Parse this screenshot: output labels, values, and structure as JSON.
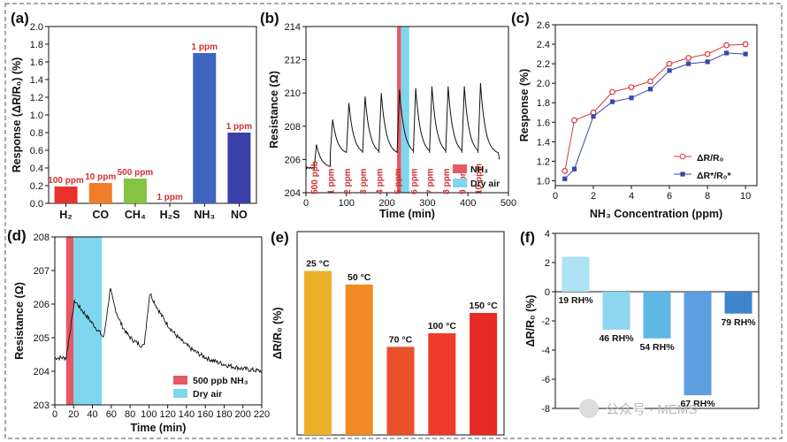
{
  "watermark": "公众号 · MEMS",
  "chart_data": [
    {
      "panel": "(a)",
      "type": "bar",
      "ylabel": "Response (ΔR/R₀) (%)",
      "ylim": [
        0,
        2.0
      ],
      "yticks": [
        "0.0",
        "0.2",
        "0.4",
        "0.6",
        "0.8",
        "1.0",
        "1.2",
        "1.4",
        "1.6",
        "1.8",
        "2.0"
      ],
      "categories": [
        "H₂",
        "CO",
        "CH₄",
        "H₂S",
        "NH₃",
        "NO"
      ],
      "values": [
        0.19,
        0.23,
        0.28,
        0.0,
        1.7,
        0.8
      ],
      "bar_labels": [
        "100 ppm",
        "10 ppm",
        "500 ppm",
        "1 ppm",
        "1 ppm",
        "1 ppm"
      ],
      "colors": [
        "#e8322c",
        "#f07d2a",
        "#86c443",
        "#e8b32c",
        "#3f65c1",
        "#3a3fa9"
      ]
    },
    {
      "panel": "(b)",
      "type": "line",
      "xlabel": "Time (min)",
      "ylabel": "Resistance (Ω)",
      "xlim": [
        0,
        500
      ],
      "ylim": [
        204,
        214
      ],
      "xticks": [
        "0",
        "100",
        "200",
        "300",
        "400",
        "500"
      ],
      "yticks": [
        "204",
        "206",
        "208",
        "210",
        "212",
        "214"
      ],
      "pulse_starts": [
        20,
        60,
        100,
        140,
        180,
        225,
        265,
        305,
        345,
        385,
        425
      ],
      "pulse_peaks": [
        206.9,
        208.4,
        209.4,
        209.8,
        210.0,
        210.2,
        210.3,
        210.4,
        210.4,
        210.4,
        210.6
      ],
      "pulse_labels": [
        "500 ppb",
        "1 ppm",
        "2 ppm",
        "3 ppm",
        "4 ppm",
        "5 ppm",
        "6 ppm",
        "7 ppm",
        "8 ppm",
        "9 ppm",
        "10 ppm"
      ],
      "nh3_band": [
        225,
        235
      ],
      "air_band": [
        235,
        255
      ],
      "legend": [
        "NH₃",
        "Dry air"
      ]
    },
    {
      "panel": "(c)",
      "type": "line",
      "xlabel": "NH₃ Concentration (ppm)",
      "ylabel": "Response (%)",
      "xlim": [
        0,
        10.6
      ],
      "ylim": [
        0.95,
        2.6
      ],
      "xticks": [
        "0",
        "2",
        "4",
        "6",
        "8",
        "10"
      ],
      "yticks": [
        "1.0",
        "1.2",
        "1.4",
        "1.6",
        "1.8",
        "2.0",
        "2.2",
        "2.4",
        "2.6"
      ],
      "x": [
        0.5,
        1,
        2,
        3,
        4,
        5,
        6,
        7,
        8,
        9,
        10
      ],
      "series": [
        {
          "name": "ΔR/R₀",
          "values": [
            1.1,
            1.62,
            1.7,
            1.91,
            1.96,
            2.02,
            2.2,
            2.26,
            2.3,
            2.39,
            2.4
          ],
          "color": "#d9373a"
        },
        {
          "name": "ΔR*/R₀*",
          "values": [
            1.02,
            1.12,
            1.66,
            1.81,
            1.85,
            1.94,
            2.13,
            2.2,
            2.22,
            2.31,
            2.3
          ],
          "color": "#3848a8"
        }
      ]
    },
    {
      "panel": "(d)",
      "type": "line",
      "xlabel": "Time (min)",
      "ylabel": "Resistance (Ω)",
      "xlim": [
        0,
        220
      ],
      "ylim": [
        203,
        208
      ],
      "xticks": [
        "0",
        "20",
        "40",
        "60",
        "80",
        "100",
        "120",
        "140",
        "160",
        "180",
        "200",
        "220"
      ],
      "yticks": [
        "203",
        "204",
        "205",
        "206",
        "207",
        "208"
      ],
      "nh3_band": [
        12,
        20
      ],
      "air_band": [
        20,
        50
      ],
      "legend": [
        "500 ppb NH₃",
        "Dry air"
      ]
    },
    {
      "panel": "(e)",
      "type": "bar",
      "ylabel": "ΔR/R₀ (%)",
      "ylim": [
        0,
        3.0
      ],
      "categories": [
        "25 °C",
        "50 °C",
        "70 °C",
        "100 °C",
        "150 °C"
      ],
      "values": [
        2.42,
        2.22,
        1.3,
        1.5,
        1.8
      ],
      "colors": [
        "#ebb12a",
        "#f08c23",
        "#e9502b",
        "#ec3b28",
        "#e82a24"
      ]
    },
    {
      "panel": "(f)",
      "type": "bar",
      "ylabel": "ΔR/R₀ (%)",
      "ylim": [
        -8,
        4
      ],
      "yticks": [
        "4",
        "2",
        "0",
        "-2",
        "-4",
        "-6",
        "-8"
      ],
      "categories": [
        "19 RH%",
        "46 RH%",
        "54 RH%",
        "67 RH%",
        "79 RH%"
      ],
      "values": [
        2.4,
        -2.6,
        -3.2,
        -7.1,
        -1.5
      ],
      "colors": [
        "#aee2f4",
        "#8dd6ef",
        "#5fb7e6",
        "#5e9fdf",
        "#3d86cc"
      ]
    }
  ]
}
